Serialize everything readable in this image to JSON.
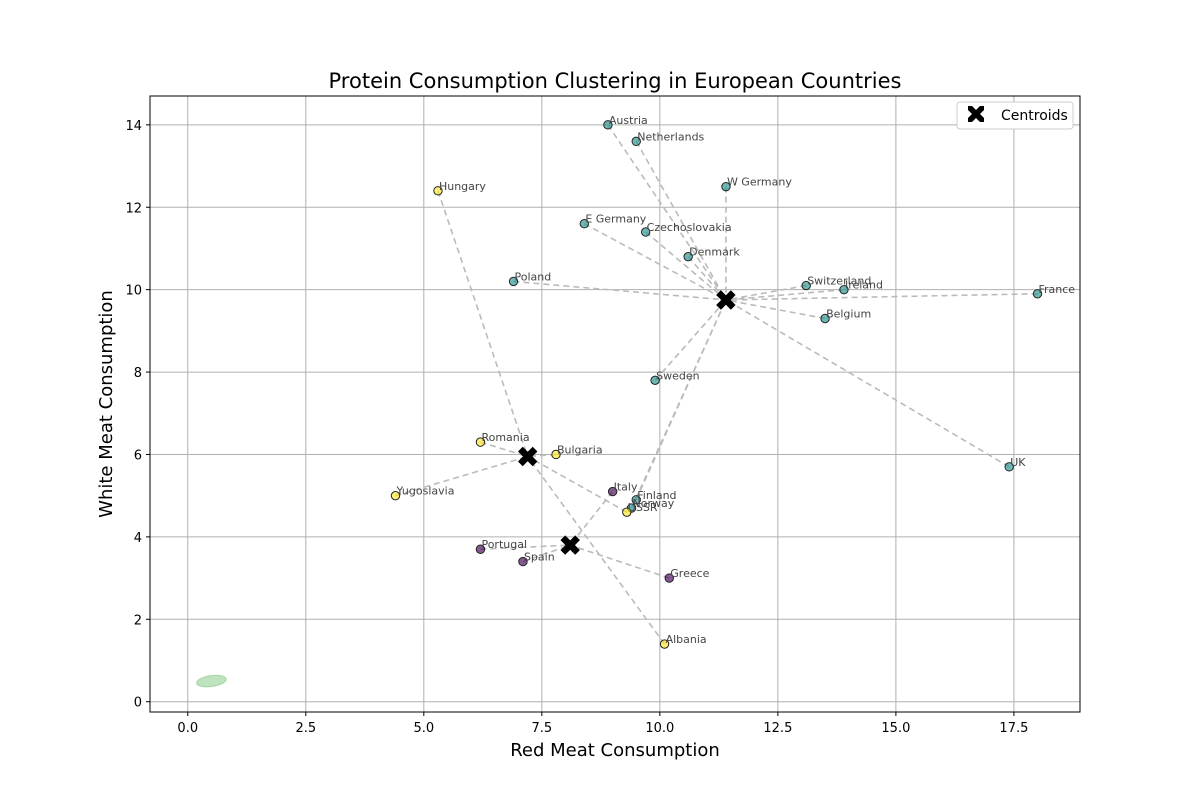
{
  "chart_data": {
    "type": "scatter",
    "title": "Protein Consumption Clustering in European Countries",
    "xlabel": "Red Meat Consumption",
    "ylabel": "White Meat Consumption",
    "xlim": [
      -0.8,
      18.9
    ],
    "ylim": [
      -0.25,
      14.7
    ],
    "xticks": [
      0.0,
      2.5,
      5.0,
      7.5,
      10.0,
      12.5,
      15.0,
      17.5
    ],
    "xtick_labels": [
      "0.0",
      "2.5",
      "5.0",
      "7.5",
      "10.0",
      "12.5",
      "15.0",
      "17.5"
    ],
    "yticks": [
      0,
      2,
      4,
      6,
      8,
      10,
      12,
      14
    ],
    "ytick_labels": [
      "0",
      "2",
      "4",
      "6",
      "8",
      "10",
      "12",
      "14"
    ],
    "grid": true,
    "legend": {
      "placement": "top-right",
      "entries": [
        "Centroids"
      ]
    },
    "cluster_colors": {
      "0": "#440154",
      "1": "#21918c",
      "2": "#fde725"
    },
    "centroids": [
      {
        "cluster": 0,
        "x": 8.1,
        "y": 3.8
      },
      {
        "cluster": 1,
        "x": 11.4,
        "y": 9.75
      },
      {
        "cluster": 2,
        "x": 7.2,
        "y": 5.95
      }
    ],
    "points": [
      {
        "country": "Albania",
        "x": 10.1,
        "y": 1.4,
        "cluster": 2
      },
      {
        "country": "Austria",
        "x": 8.9,
        "y": 14.0,
        "cluster": 1
      },
      {
        "country": "Belgium",
        "x": 13.5,
        "y": 9.3,
        "cluster": 1
      },
      {
        "country": "Bulgaria",
        "x": 7.8,
        "y": 6.0,
        "cluster": 2
      },
      {
        "country": "Czechoslovakia",
        "x": 9.7,
        "y": 11.4,
        "cluster": 1
      },
      {
        "country": "Denmark",
        "x": 10.6,
        "y": 10.8,
        "cluster": 1
      },
      {
        "country": "E Germany",
        "x": 8.4,
        "y": 11.6,
        "cluster": 1
      },
      {
        "country": "Finland",
        "x": 9.5,
        "y": 4.9,
        "cluster": 1
      },
      {
        "country": "France",
        "x": 18.0,
        "y": 9.9,
        "cluster": 1
      },
      {
        "country": "Greece",
        "x": 10.2,
        "y": 3.0,
        "cluster": 0
      },
      {
        "country": "Hungary",
        "x": 5.3,
        "y": 12.4,
        "cluster": 2
      },
      {
        "country": "Ireland",
        "x": 13.9,
        "y": 10.0,
        "cluster": 1
      },
      {
        "country": "Italy",
        "x": 9.0,
        "y": 5.1,
        "cluster": 0
      },
      {
        "country": "Netherlands",
        "x": 9.5,
        "y": 13.6,
        "cluster": 1
      },
      {
        "country": "Norway",
        "x": 9.4,
        "y": 4.7,
        "cluster": 1
      },
      {
        "country": "Poland",
        "x": 6.9,
        "y": 10.2,
        "cluster": 1
      },
      {
        "country": "Portugal",
        "x": 6.2,
        "y": 3.7,
        "cluster": 0
      },
      {
        "country": "Romania",
        "x": 6.2,
        "y": 6.3,
        "cluster": 2
      },
      {
        "country": "Spain",
        "x": 7.1,
        "y": 3.4,
        "cluster": 0
      },
      {
        "country": "Sweden",
        "x": 9.9,
        "y": 7.8,
        "cluster": 1
      },
      {
        "country": "Switzerland",
        "x": 13.1,
        "y": 10.1,
        "cluster": 1
      },
      {
        "country": "UK",
        "x": 17.4,
        "y": 5.7,
        "cluster": 1
      },
      {
        "country": "USSR",
        "x": 9.3,
        "y": 4.6,
        "cluster": 2
      },
      {
        "country": "W Germany",
        "x": 11.4,
        "y": 12.5,
        "cluster": 1
      },
      {
        "country": "Yugoslavia",
        "x": 4.4,
        "y": 5.0,
        "cluster": 2
      }
    ],
    "density_blob": {
      "x": 0.5,
      "y": 0.5,
      "color": "#2ca02c"
    }
  }
}
